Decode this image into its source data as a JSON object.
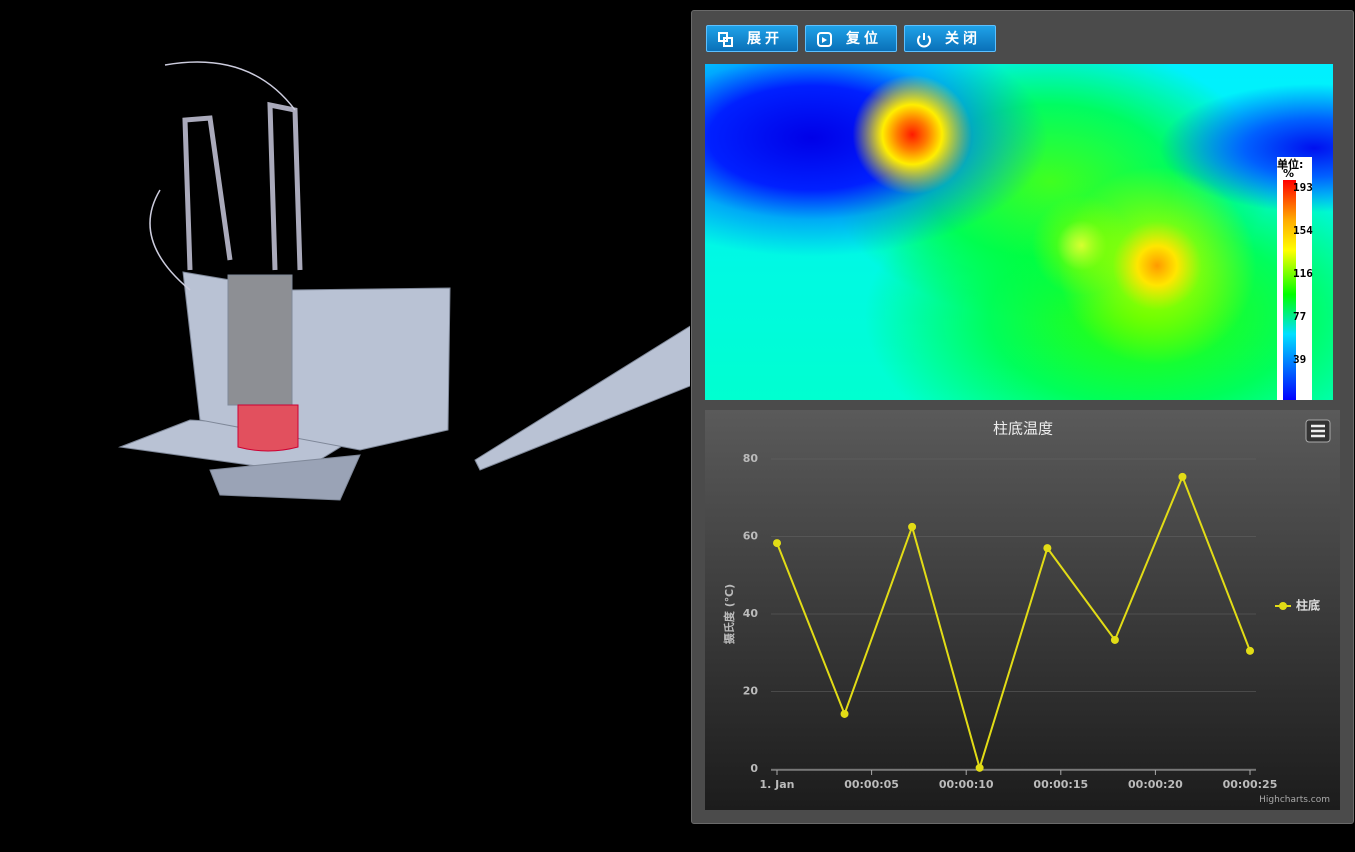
{
  "buttons": [
    "展开",
    "复位",
    "关闭"
  ],
  "heatmap": {
    "legend_title": "单位:",
    "legend_unit": "%",
    "legend_ticks": [
      193,
      154,
      116,
      77,
      39
    ]
  },
  "chart_data": {
    "type": "line",
    "title": "柱底温度",
    "y_label": "摄氏度 (℃)",
    "x": [
      0,
      3.57,
      7.14,
      10.71,
      14.29,
      17.86,
      21.43,
      25
    ],
    "series": [
      {
        "name": "柱底",
        "color": "#e2dc16",
        "values": [
          58.3,
          14.2,
          62.5,
          0.3,
          57,
          33.3,
          75.4,
          30.5
        ]
      }
    ],
    "xlim": [
      0,
      25
    ],
    "xticks": [
      {
        "value": 0,
        "label": "1. Jan"
      },
      {
        "value": 5,
        "label": "00:00:05"
      },
      {
        "value": 10,
        "label": "00:00:10"
      },
      {
        "value": 15,
        "label": "00:00:15"
      },
      {
        "value": 20,
        "label": "00:00:20"
      },
      {
        "value": 25,
        "label": "00:00:25"
      }
    ],
    "ylim": [
      0,
      80
    ],
    "yticks": [
      0,
      20,
      40,
      60,
      80
    ],
    "grid": true,
    "legend": "right",
    "credits": "Highcharts.com"
  }
}
